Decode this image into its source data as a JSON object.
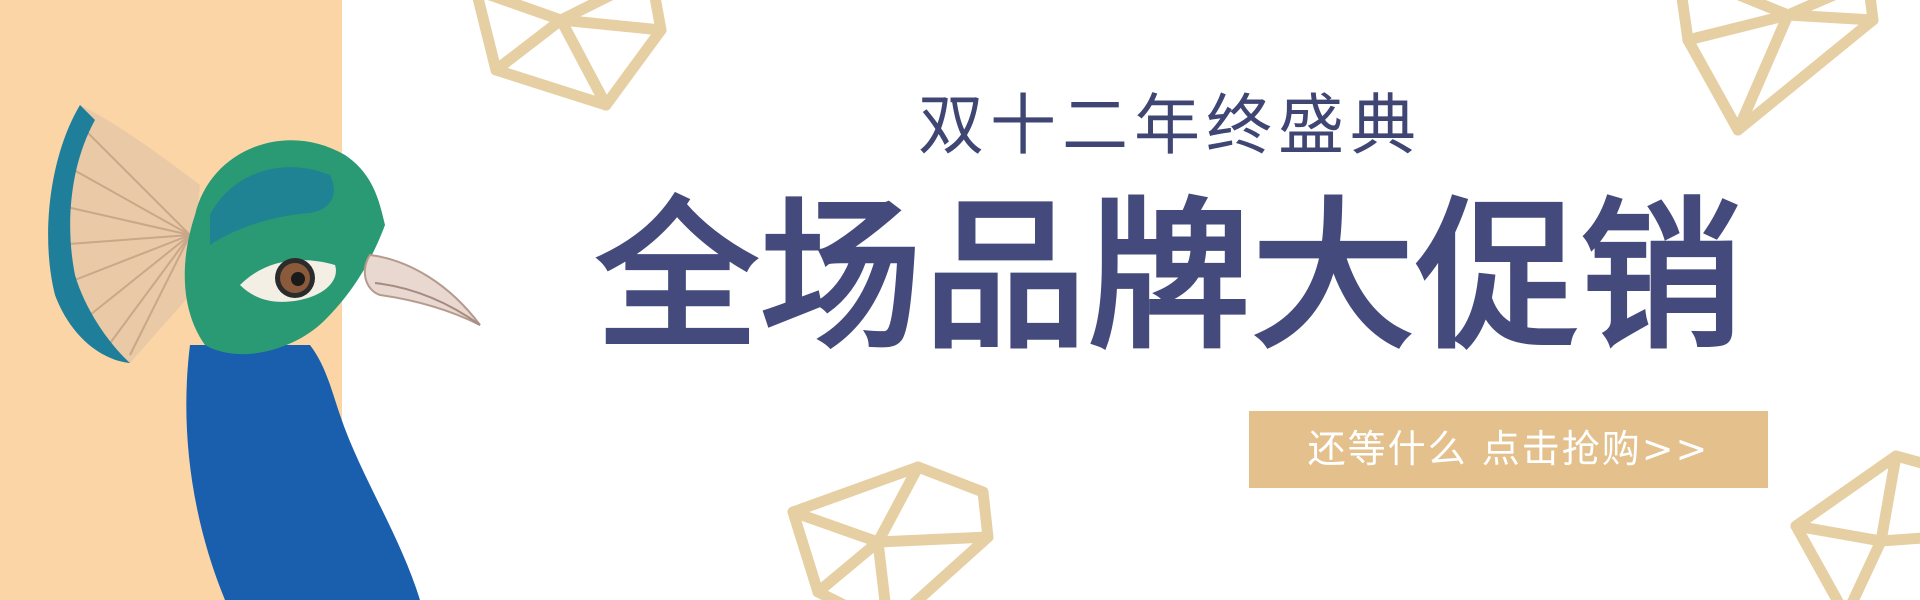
{
  "banner": {
    "subtitle": "双十二年终盛典",
    "headline": "全场品牌大促销",
    "cta_label": "还等什么 点击抢购>>"
  },
  "decorations": {
    "shape": "gem-outline",
    "count": 4
  },
  "illustration": {
    "subject": "peacock-head"
  },
  "colors": {
    "background": "#ffffff",
    "side_panel": "#fcd5a6",
    "gem_stroke": "#e6cfa3",
    "title_text": "#3f4673",
    "headline_text": "#444b7c",
    "cta_background": "#e3c08c",
    "cta_text": "#ffffff",
    "peacock_teal": "#1f7f9a",
    "peacock_blue": "#1a5fae",
    "peacock_green": "#2a9a74",
    "feather_crest": "#e9c9a6"
  }
}
